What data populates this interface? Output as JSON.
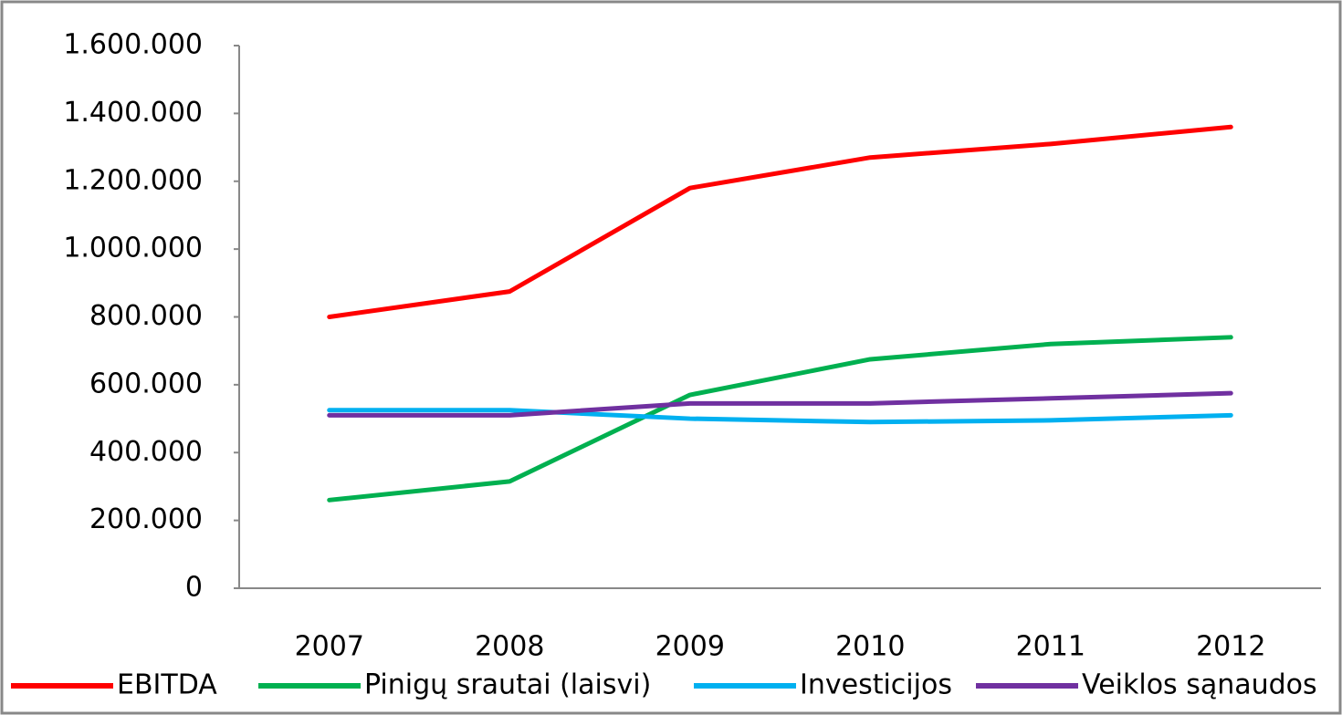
{
  "chart_data": {
    "type": "line",
    "categories": [
      "2007",
      "2008",
      "2009",
      "2010",
      "2011",
      "2012"
    ],
    "series": [
      {
        "name": "EBITDA",
        "color": "#ff0000",
        "values": [
          800000,
          875000,
          1180000,
          1270000,
          1310000,
          1360000
        ]
      },
      {
        "name": "Pinigų srautai (laisvi)",
        "color": "#00b050",
        "values": [
          260000,
          315000,
          570000,
          675000,
          720000,
          740000
        ]
      },
      {
        "name": "Investicijos",
        "color": "#00b0f0",
        "values": [
          525000,
          525000,
          500000,
          490000,
          495000,
          510000
        ]
      },
      {
        "name": "Veiklos sąnaudos",
        "color": "#7030a0",
        "values": [
          510000,
          510000,
          545000,
          545000,
          560000,
          575000
        ]
      }
    ],
    "ylim": [
      0,
      1600000
    ],
    "yticks": [
      0,
      {
        "value": 200000,
        "label": "200.000"
      },
      {
        "value": 400000,
        "label": "400.000"
      },
      {
        "value": 600000,
        "label": "600.000"
      },
      {
        "value": 800000,
        "label": "800.000"
      },
      {
        "value": 1000000,
        "label": "1.000.000"
      },
      {
        "value": 1200000,
        "label": "1.200.000"
      },
      {
        "value": 1400000,
        "label": "1.400.000"
      },
      {
        "value": 1600000,
        "label": "1.600.000"
      }
    ],
    "legend": "bottom"
  }
}
